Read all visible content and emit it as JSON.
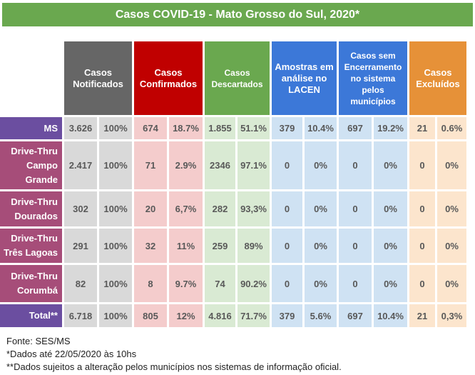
{
  "title": "Casos COVID-19 - Mato Grosso do Sul, 2020*",
  "headers": [
    "Casos Notificados",
    "Casos Confirmados",
    "Casos Descartados",
    "Amostras em análise no LACEN",
    "Casos sem Encerramento no sistema pelos municípios",
    "Casos Excluídos"
  ],
  "colors": {
    "title": "#6aa84f",
    "notificados": "#666666",
    "confirmados": "#c00000",
    "descartados": "#6aa84f",
    "amostras": "#3c78d8",
    "sem_encerramento": "#3c78d8",
    "excluidos": "#e69138",
    "ms_label": "#6b4ea0",
    "drive_label": "#a64d79"
  },
  "rows": [
    {
      "label": "MS",
      "type": "ms",
      "values": [
        "3.626",
        "100%",
        "674",
        "18.7%",
        "1.855",
        "51.1%",
        "379",
        "10.4%",
        "697",
        "19.2%",
        "21",
        "0.6%"
      ]
    },
    {
      "label": "Drive-Thru Campo Grande",
      "type": "drive",
      "values": [
        "2.417",
        "100%",
        "71",
        "2.9%",
        "2346",
        "97.1%",
        "0",
        "0%",
        "0",
        "0%",
        "0",
        "0%"
      ]
    },
    {
      "label": "Drive-Thru Dourados",
      "type": "drive",
      "values": [
        "302",
        "100%",
        "20",
        "6,7%",
        "282",
        "93,3%",
        "0",
        "0%",
        "0",
        "0%",
        "0",
        "0%"
      ]
    },
    {
      "label": "Drive-Thru Três Lagoas",
      "type": "drive",
      "values": [
        "291",
        "100%",
        "32",
        "11%",
        "259",
        "89%",
        "0",
        "0%",
        "0",
        "0%",
        "0",
        "0%"
      ]
    },
    {
      "label": "Drive-Thru Corumbá",
      "type": "drive",
      "values": [
        "82",
        "100%",
        "8",
        "9.7%",
        "74",
        "90.2%",
        "0",
        "0%",
        "0",
        "0%",
        "0",
        "0%"
      ]
    },
    {
      "label": "Total**",
      "type": "ms",
      "values": [
        "6.718",
        "100%",
        "805",
        "12%",
        "4.816",
        "71.7%",
        "379",
        "5.6%",
        "697",
        "10.4%",
        "21",
        "0,3%"
      ]
    }
  ],
  "footnotes": [
    "Fonte: SES/MS",
    "*Dados até 22/05/2020 às 10hs",
    "**Dados sujeitos a alteração pelos municípios nos sistemas de informação oficial."
  ]
}
